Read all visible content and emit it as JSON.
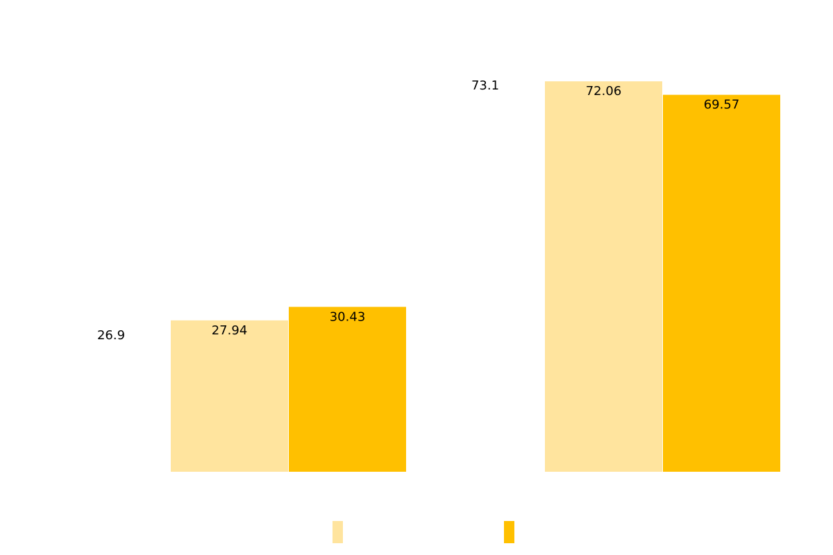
{
  "chart_data": {
    "type": "bar",
    "categories": [
      "",
      ""
    ],
    "series": [
      {
        "color": "#FFE49E",
        "values": [
          27.94,
          72.06
        ]
      },
      {
        "color": "#FFC000",
        "values": [
          30.43,
          69.57
        ]
      }
    ],
    "extra_labels": [
      "26.9",
      "73.1"
    ],
    "ylim": [
      0,
      100
    ],
    "grid": false,
    "legend_position": "bottom"
  }
}
